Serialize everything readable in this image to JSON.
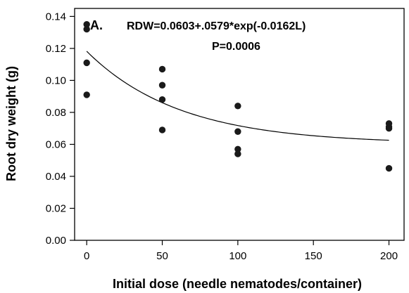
{
  "chart_data": {
    "type": "scatter",
    "panel_label": "A.",
    "title": "",
    "xlabel": "Initial dose (needle nematodes/container)",
    "ylabel": "Root dry weight (g)",
    "xlim": [
      -8,
      210
    ],
    "ylim": [
      0,
      0.145
    ],
    "xticks": [
      0,
      50,
      100,
      150,
      200
    ],
    "yticks": [
      0.0,
      0.02,
      0.04,
      0.06,
      0.08,
      0.1,
      0.12,
      0.14
    ],
    "ytick_labels": [
      "0.00",
      "0.02",
      "0.04",
      "0.06",
      "0.08",
      "0.10",
      "0.12",
      "0.14"
    ],
    "xtick_labels": [
      "0",
      "50",
      "100",
      "150",
      "200"
    ],
    "grid": false,
    "annotations": {
      "equation": "RDW=0.0603+.0579*exp(-0.0162L)",
      "p_value": "P=0.0006"
    },
    "points": [
      {
        "x": 0,
        "y": 0.135
      },
      {
        "x": 0,
        "y": 0.132
      },
      {
        "x": 0,
        "y": 0.111
      },
      {
        "x": 0,
        "y": 0.091
      },
      {
        "x": 50,
        "y": 0.107
      },
      {
        "x": 50,
        "y": 0.097
      },
      {
        "x": 50,
        "y": 0.088
      },
      {
        "x": 50,
        "y": 0.069
      },
      {
        "x": 100,
        "y": 0.084
      },
      {
        "x": 100,
        "y": 0.068
      },
      {
        "x": 100,
        "y": 0.057
      },
      {
        "x": 100,
        "y": 0.054
      },
      {
        "x": 200,
        "y": 0.073
      },
      {
        "x": 200,
        "y": 0.071
      },
      {
        "x": 200,
        "y": 0.07
      },
      {
        "x": 200,
        "y": 0.045
      }
    ],
    "fit": {
      "type": "exponential",
      "a": 0.0603,
      "b": 0.0579,
      "c": -0.0162,
      "x_range": [
        0,
        200
      ]
    },
    "colors": {
      "marker": "#1a1a1a",
      "line": "#000000",
      "axis": "#000000"
    }
  }
}
